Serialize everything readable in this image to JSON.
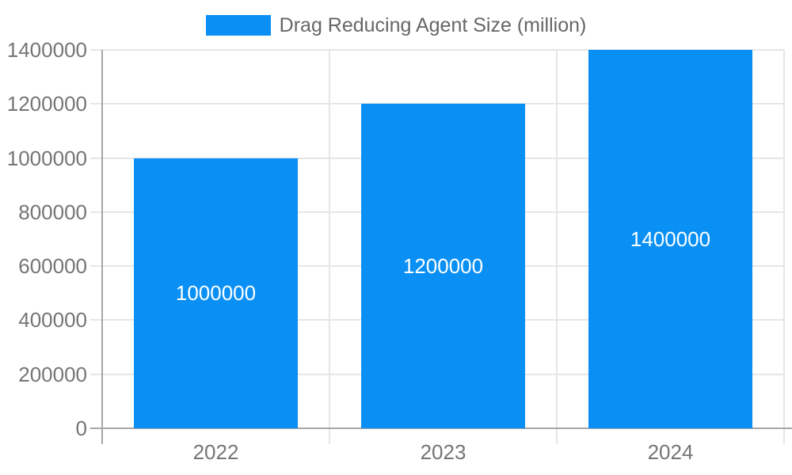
{
  "chart_data": {
    "type": "bar",
    "title": "",
    "legend": "Drag Reducing Agent Size (million)",
    "legend_position": "top-center",
    "categories": [
      "2022",
      "2023",
      "2024"
    ],
    "series": [
      {
        "name": "Drag Reducing Agent Size (million)",
        "values": [
          1000000,
          1200000,
          1400000
        ]
      }
    ],
    "bar_labels": [
      "1000000",
      "1200000",
      "1400000"
    ],
    "xlabel": "",
    "ylabel": "",
    "ylim": [
      0,
      1400000
    ],
    "ytick_step": 200000,
    "yticks": [
      0,
      200000,
      400000,
      600000,
      800000,
      1000000,
      1200000,
      1400000
    ],
    "grid": "on",
    "colors": {
      "bar": "#0a90f5",
      "legend_text": "#666666",
      "tick_text": "#757575",
      "grid_line": "#e6e6e6",
      "axis_line": "#a6a6a6",
      "bar_label_text": "#ffffff",
      "background": "#ffffff"
    }
  }
}
